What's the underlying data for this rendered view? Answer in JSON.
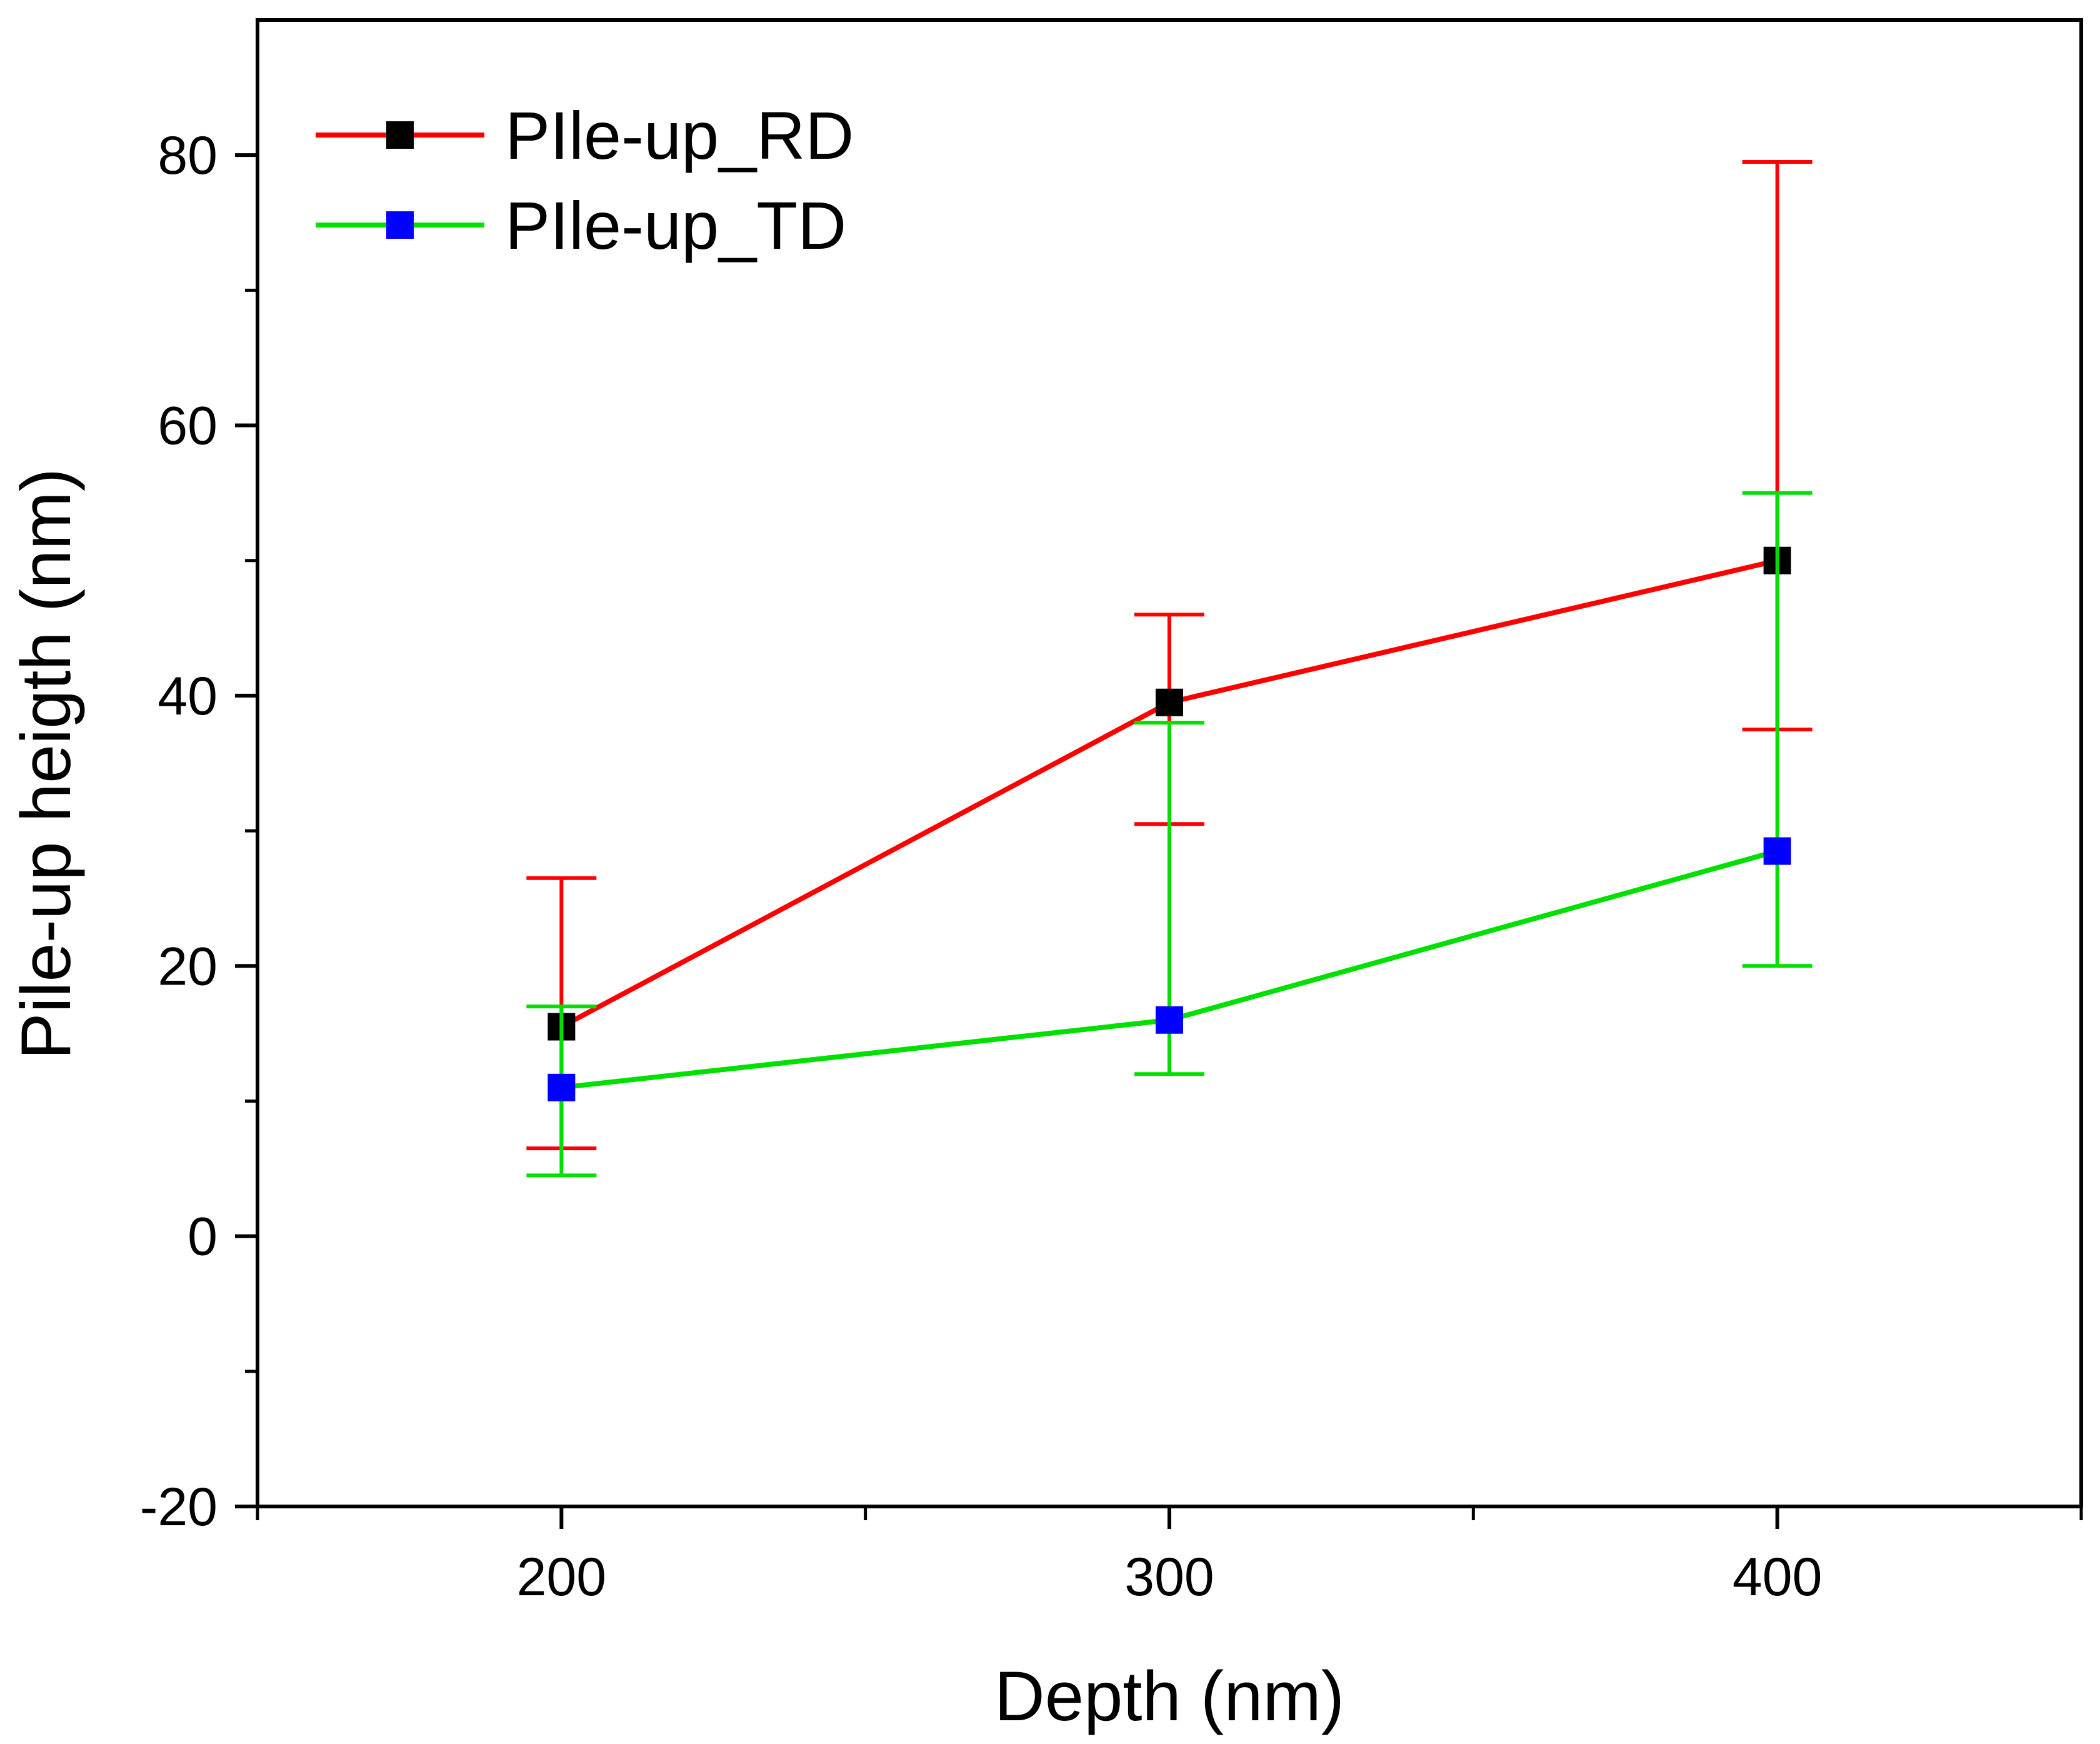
{
  "chart_data": {
    "type": "line",
    "xlabel": "Depth (nm)",
    "ylabel": "Pile-up heigth (nm)",
    "xlim": [
      150,
      450
    ],
    "ylim": [
      -20,
      90
    ],
    "x_ticks": [
      200,
      300,
      400
    ],
    "x_tick_labels": [
      "200",
      "300",
      "400"
    ],
    "y_ticks": [
      -20,
      0,
      20,
      40,
      60,
      80
    ],
    "y_tick_labels": [
      "-20",
      "0",
      "20",
      "40",
      "60",
      "80"
    ],
    "grid": false,
    "legend_position": "top-left",
    "series": [
      {
        "name": "PIle-up_RD",
        "line_color": "#ff0000",
        "marker_color": "#000000",
        "x": [
          200,
          300,
          400
        ],
        "y": [
          15.5,
          39.5,
          50
        ],
        "err_low": [
          6.5,
          30.5,
          37.5
        ],
        "err_high": [
          26.5,
          46,
          79.5
        ]
      },
      {
        "name": "PIle-up_TD",
        "line_color": "#00e000",
        "marker_color": "#0000ff",
        "x": [
          200,
          300,
          400
        ],
        "y": [
          11,
          16,
          28.5
        ],
        "err_low": [
          4.5,
          12,
          20
        ],
        "err_high": [
          17,
          38,
          55
        ]
      }
    ]
  }
}
